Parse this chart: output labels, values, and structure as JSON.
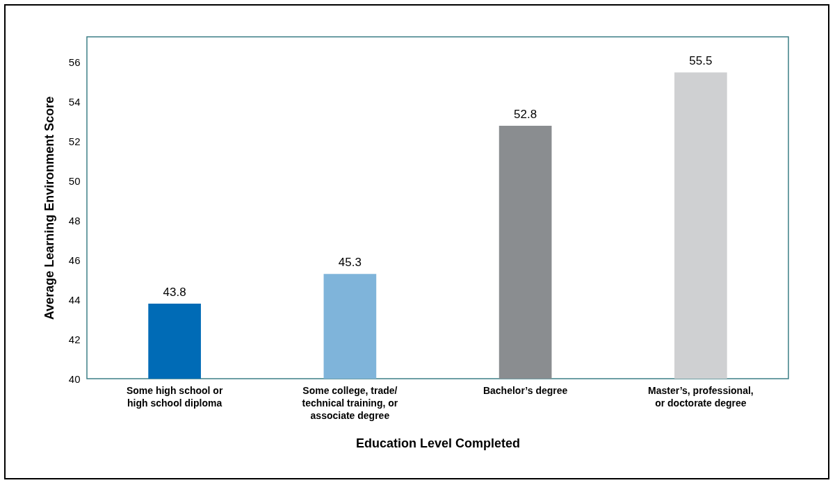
{
  "chart_data": {
    "type": "bar",
    "xlabel": "Education Level Completed",
    "ylabel": "Average Learning Environment Score",
    "categories": [
      "Some high school or high school diploma",
      "Some college, trade/ technical training, or associate degree",
      "Bachelor’s degree",
      "Master’s, professional, or doctorate degree"
    ],
    "values": [
      43.8,
      45.3,
      52.8,
      55.5
    ],
    "colors": [
      "#006bb6",
      "#7fb4da",
      "#8a8d90",
      "#cfd0d2"
    ],
    "ylim": [
      40,
      57.3
    ],
    "yticks": [
      40,
      42,
      44,
      46,
      48,
      50,
      52,
      54,
      56
    ],
    "data_labels": true,
    "grid": false
  }
}
